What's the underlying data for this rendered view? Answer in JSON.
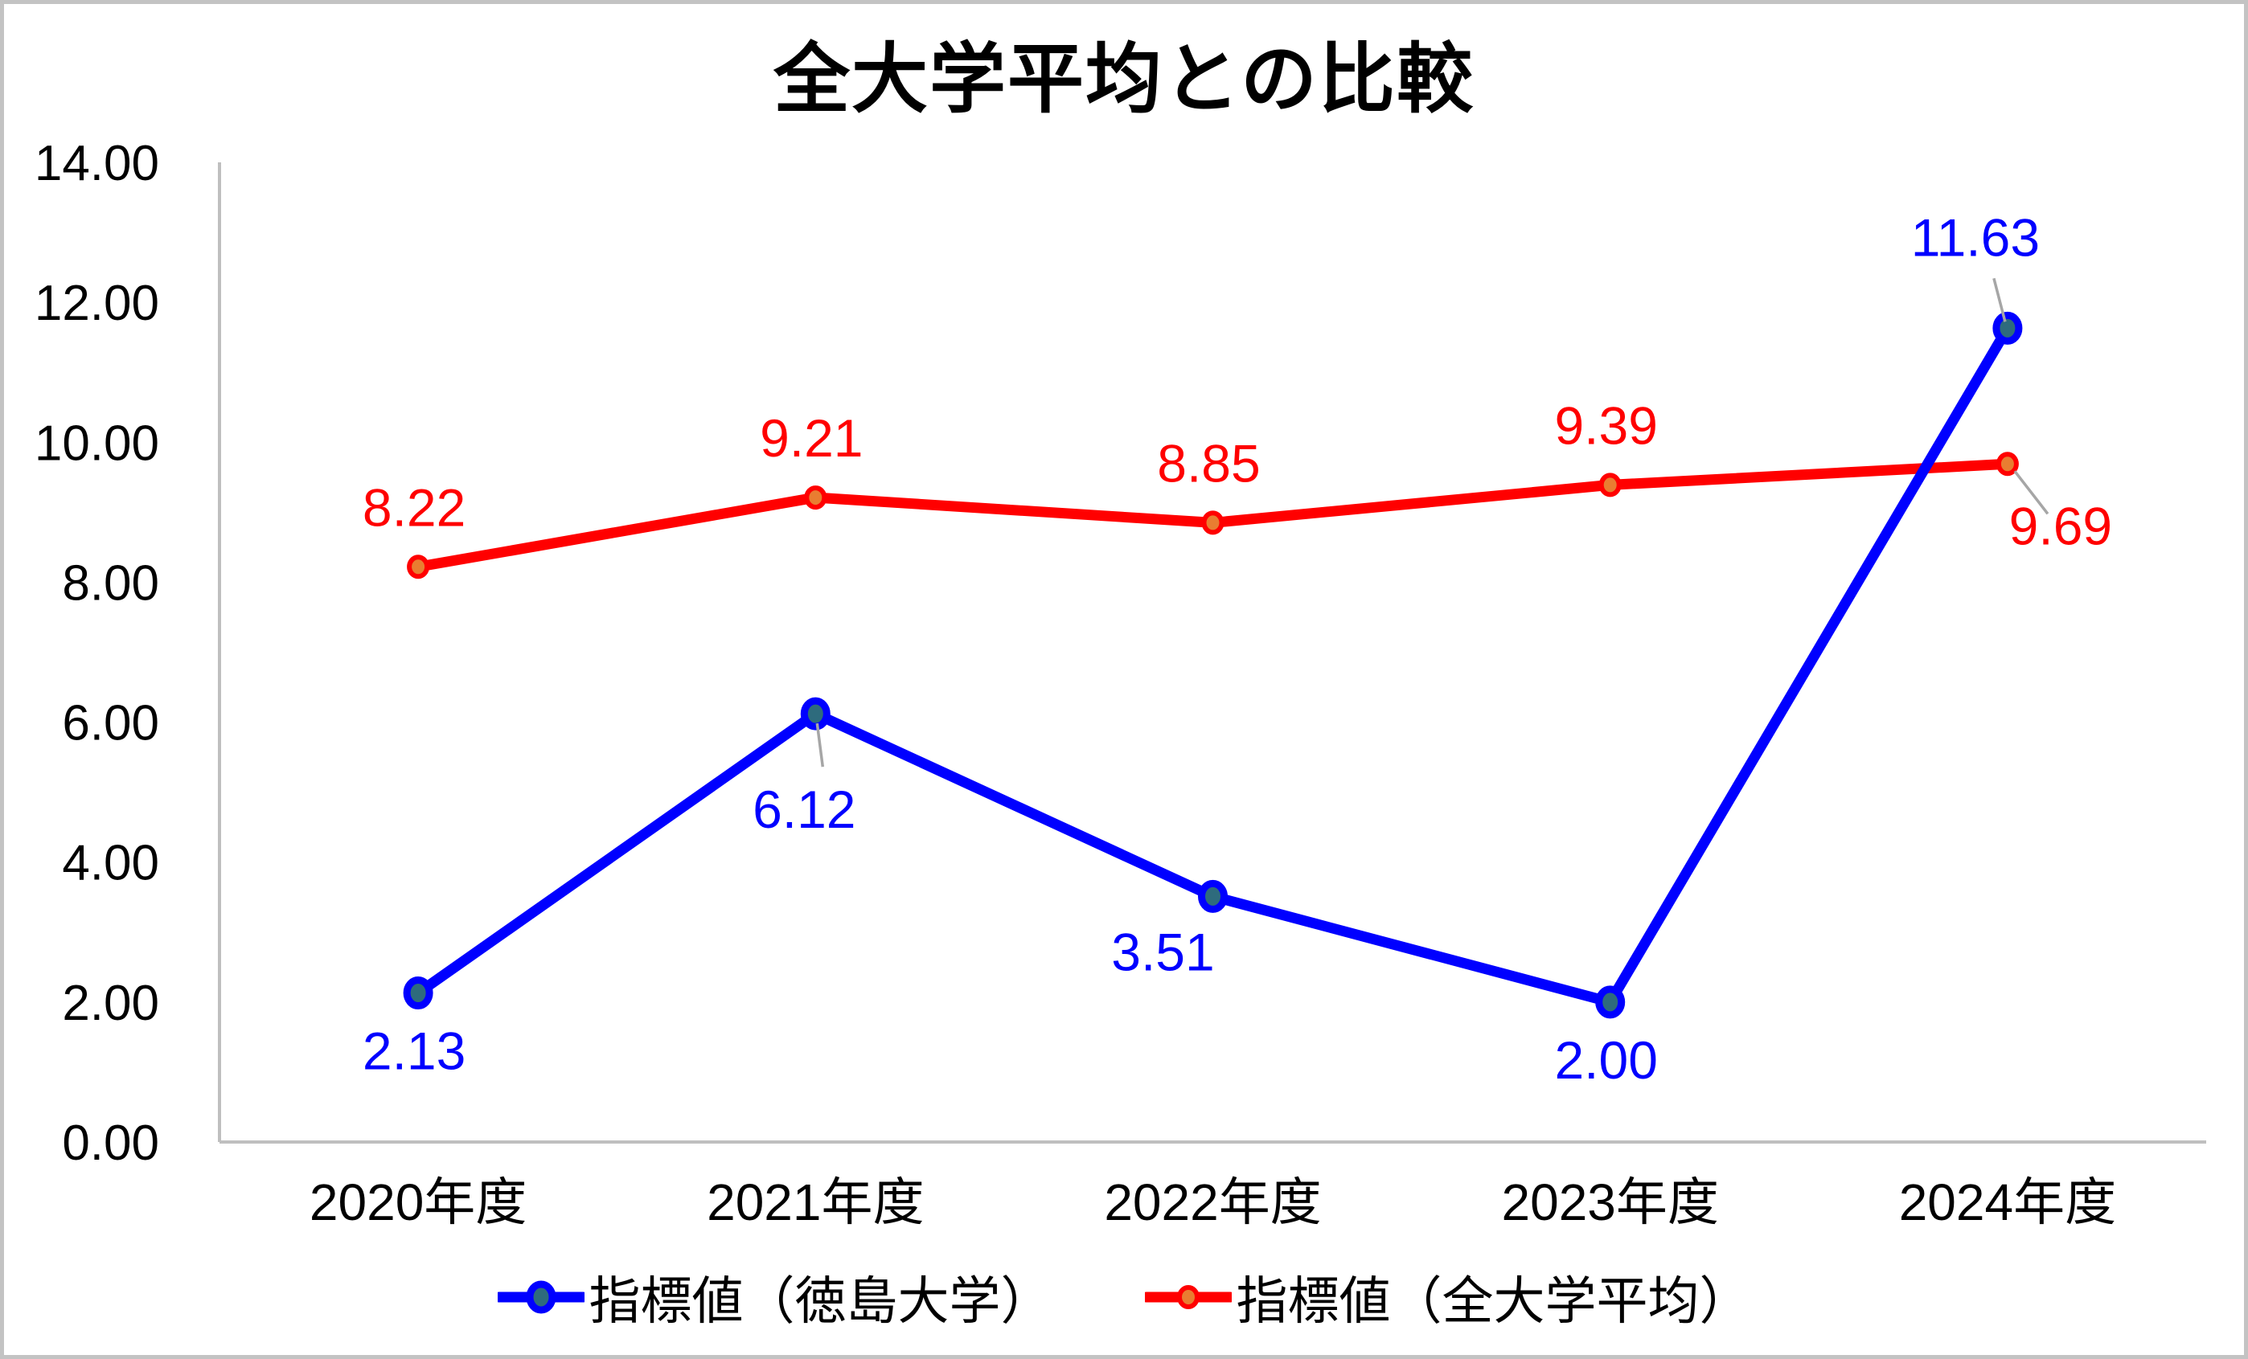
{
  "chart_data": {
    "type": "line",
    "title": "全大学平均との比較",
    "categories": [
      "2020年度",
      "2021年度",
      "2022年度",
      "2023年度",
      "2024年度"
    ],
    "series": [
      {
        "name": "指標値（徳島大学）",
        "line_color": "#0000ff",
        "marker_fill": "#2e6b7d",
        "marker_stroke": "#0000ff",
        "label_color": "#0000ff",
        "values": [
          2.13,
          6.12,
          3.51,
          2.0,
          11.63
        ],
        "data_labels": [
          "2.13",
          "6.12",
          "3.51",
          "2.00",
          "11.63"
        ],
        "label_placements": [
          "below",
          "below-leader",
          "below-left",
          "below",
          "above-left-leader"
        ],
        "marker_size": "large"
      },
      {
        "name": "指標値（全大学平均）",
        "line_color": "#ff0000",
        "marker_fill": "#e97d31",
        "marker_stroke": "#ff0000",
        "label_color": "#ff0000",
        "values": [
          8.22,
          9.21,
          8.85,
          9.39,
          9.69
        ],
        "data_labels": [
          "8.22",
          "9.21",
          "8.85",
          "9.39",
          "9.69"
        ],
        "label_placements": [
          "above",
          "above",
          "above",
          "above",
          "below-right-leader"
        ],
        "marker_size": "small"
      }
    ],
    "y_axis": {
      "min": 0,
      "max": 14,
      "tick_step": 2,
      "tick_labels": [
        "0.00",
        "2.00",
        "4.00",
        "6.00",
        "8.00",
        "10.00",
        "12.00",
        "14.00"
      ]
    },
    "legend": {
      "position": "bottom"
    },
    "grid": false,
    "colors": {
      "axis_line": "#bfbfbf",
      "leader_line": "#a6a6a6",
      "background": "#ffffff",
      "frame_border": "#c3c3c3",
      "title_text": "#000000",
      "axis_text": "#000000"
    }
  }
}
